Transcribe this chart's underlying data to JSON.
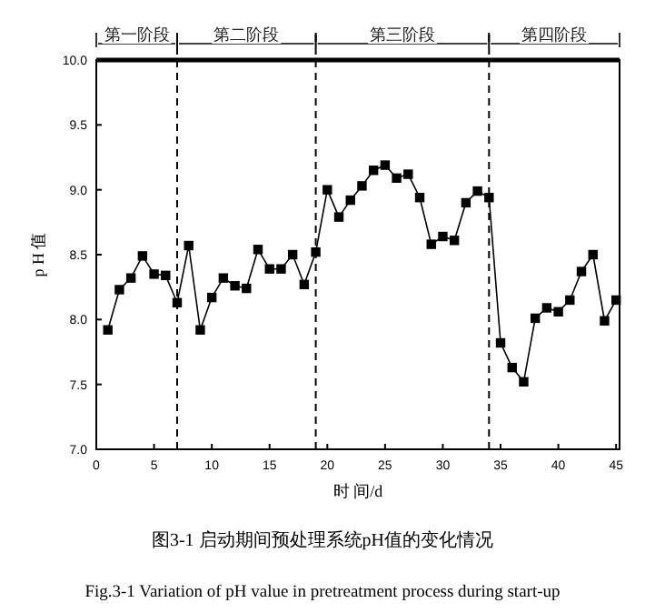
{
  "chart_data": {
    "type": "line",
    "xlabel": "时 间/d",
    "ylabel": "p H 值",
    "x": [
      1,
      2,
      3,
      4,
      5,
      6,
      7,
      8,
      9,
      10,
      11,
      12,
      13,
      14,
      15,
      16,
      17,
      18,
      19,
      20,
      21,
      22,
      23,
      24,
      25,
      26,
      27,
      28,
      29,
      30,
      31,
      32,
      33,
      34,
      35,
      36,
      37,
      38,
      39,
      40,
      41,
      42,
      43,
      44,
      45
    ],
    "series": [
      {
        "color": "#000000",
        "values": [
          7.92,
          8.23,
          8.32,
          8.49,
          8.35,
          8.34,
          8.13,
          8.57,
          7.92,
          8.17,
          8.32,
          8.26,
          8.24,
          8.54,
          8.39,
          8.39,
          8.5,
          8.27,
          8.52,
          9.0,
          8.79,
          8.92,
          9.03,
          9.15,
          9.19,
          9.09,
          9.12,
          8.94,
          8.58,
          8.64,
          8.61,
          8.9,
          8.99,
          8.94,
          7.82,
          7.63,
          7.52,
          8.01,
          8.09,
          8.06,
          8.15,
          8.37,
          8.5,
          7.99,
          8.15
        ]
      }
    ],
    "xlim": [
      0,
      45.3
    ],
    "xticks": [
      0,
      5,
      10,
      15,
      20,
      25,
      30,
      35,
      40,
      45
    ],
    "ylim": [
      7.0,
      10.0
    ],
    "yticks": [
      {
        "value": 7.0,
        "label": "7.0"
      },
      {
        "value": 7.5,
        "label": "7.5"
      },
      {
        "value": 8.0,
        "label": "8.0"
      },
      {
        "value": 8.5,
        "label": "8.5"
      },
      {
        "value": 9.0,
        "label": "9.0"
      },
      {
        "value": 9.5,
        "label": "9.5"
      },
      {
        "value": 10.0,
        "label": "10.0"
      }
    ],
    "ref_lines": [
      {
        "axis": "x",
        "value": 7,
        "line_style": "dashed"
      },
      {
        "axis": "x",
        "value": 19,
        "line_style": "dashed"
      },
      {
        "axis": "x",
        "value": 34,
        "line_style": "dashed"
      }
    ],
    "annotations": [
      "第一阶段",
      "第二阶段",
      "第三阶段",
      "第四阶段",
      "图3-1  启动期间预处理系统pH值的变化情况",
      "Fig.3-1 Variation of pH value in pretreatment process during start-up"
    ],
    "marker": "square",
    "line_style": "solid",
    "grid": false
  }
}
